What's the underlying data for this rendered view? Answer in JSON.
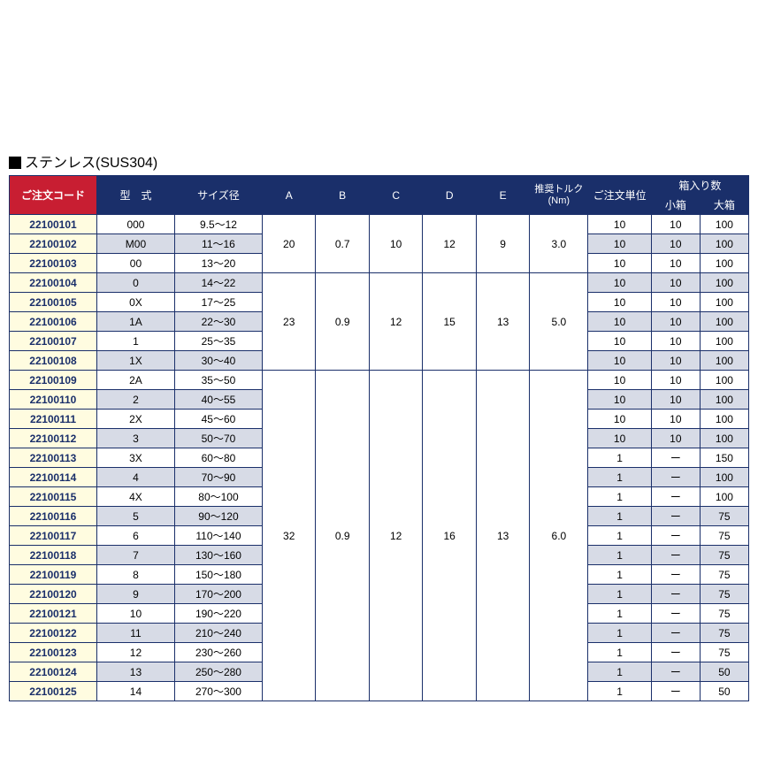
{
  "title": "ステンレス(SUS304)",
  "colors": {
    "header_bg": "#1a2f6a",
    "header_fg": "#ffffff",
    "order_header_bg": "#c81e32",
    "code_cell_bg": "#fffce0",
    "code_cell_fg": "#1a2f6a",
    "alt_row_bg": "#d7dbe6",
    "border": "#1a2f6a"
  },
  "columns": {
    "order_code": "ご注文コード",
    "type": "型　式",
    "size": "サイズ径",
    "a": "A",
    "b": "B",
    "c": "C",
    "d": "D",
    "e": "E",
    "torque": "推奨トルク\n(Nm)",
    "order_unit": "ご注文単位",
    "box_count": "箱入り数",
    "small_box": "小箱",
    "large_box": "大箱"
  },
  "spec_groups": [
    {
      "A": "20",
      "B": "0.7",
      "C": "10",
      "D": "12",
      "E": "9",
      "torque": "3.0",
      "span": 3
    },
    {
      "A": "23",
      "B": "0.9",
      "C": "12",
      "D": "15",
      "E": "13",
      "torque": "5.0",
      "span": 5
    },
    {
      "A": "32",
      "B": "0.9",
      "C": "12",
      "D": "16",
      "E": "13",
      "torque": "6.0",
      "span": 17
    }
  ],
  "rows": [
    {
      "code": "22100101",
      "type": "000",
      "size": "9.5～12",
      "unit": "10",
      "sm": "10",
      "lg": "100",
      "alt": false,
      "group": 0
    },
    {
      "code": "22100102",
      "type": "M00",
      "size": "11～16",
      "unit": "10",
      "sm": "10",
      "lg": "100",
      "alt": true,
      "group": 0
    },
    {
      "code": "22100103",
      "type": "00",
      "size": "13～20",
      "unit": "10",
      "sm": "10",
      "lg": "100",
      "alt": false,
      "group": 0
    },
    {
      "code": "22100104",
      "type": "0",
      "size": "14～22",
      "unit": "10",
      "sm": "10",
      "lg": "100",
      "alt": true,
      "group": 1
    },
    {
      "code": "22100105",
      "type": "0X",
      "size": "17～25",
      "unit": "10",
      "sm": "10",
      "lg": "100",
      "alt": false,
      "group": 1
    },
    {
      "code": "22100106",
      "type": "1A",
      "size": "22～30",
      "unit": "10",
      "sm": "10",
      "lg": "100",
      "alt": true,
      "group": 1
    },
    {
      "code": "22100107",
      "type": "1",
      "size": "25～35",
      "unit": "10",
      "sm": "10",
      "lg": "100",
      "alt": false,
      "group": 1
    },
    {
      "code": "22100108",
      "type": "1X",
      "size": "30～40",
      "unit": "10",
      "sm": "10",
      "lg": "100",
      "alt": true,
      "group": 1
    },
    {
      "code": "22100109",
      "type": "2A",
      "size": "35～50",
      "unit": "10",
      "sm": "10",
      "lg": "100",
      "alt": false,
      "group": 2
    },
    {
      "code": "22100110",
      "type": "2",
      "size": "40～55",
      "unit": "10",
      "sm": "10",
      "lg": "100",
      "alt": true,
      "group": 2
    },
    {
      "code": "22100111",
      "type": "2X",
      "size": "45～60",
      "unit": "10",
      "sm": "10",
      "lg": "100",
      "alt": false,
      "group": 2
    },
    {
      "code": "22100112",
      "type": "3",
      "size": "50～70",
      "unit": "10",
      "sm": "10",
      "lg": "100",
      "alt": true,
      "group": 2
    },
    {
      "code": "22100113",
      "type": "3X",
      "size": "60～80",
      "unit": "1",
      "sm": "ー",
      "lg": "150",
      "alt": false,
      "group": 2
    },
    {
      "code": "22100114",
      "type": "4",
      "size": "70～90",
      "unit": "1",
      "sm": "ー",
      "lg": "100",
      "alt": true,
      "group": 2
    },
    {
      "code": "22100115",
      "type": "4X",
      "size": "80～100",
      "unit": "1",
      "sm": "ー",
      "lg": "100",
      "alt": false,
      "group": 2
    },
    {
      "code": "22100116",
      "type": "5",
      "size": "90～120",
      "unit": "1",
      "sm": "ー",
      "lg": "75",
      "alt": true,
      "group": 2
    },
    {
      "code": "22100117",
      "type": "6",
      "size": "110～140",
      "unit": "1",
      "sm": "ー",
      "lg": "75",
      "alt": false,
      "group": 2
    },
    {
      "code": "22100118",
      "type": "7",
      "size": "130～160",
      "unit": "1",
      "sm": "ー",
      "lg": "75",
      "alt": true,
      "group": 2
    },
    {
      "code": "22100119",
      "type": "8",
      "size": "150～180",
      "unit": "1",
      "sm": "ー",
      "lg": "75",
      "alt": false,
      "group": 2
    },
    {
      "code": "22100120",
      "type": "9",
      "size": "170～200",
      "unit": "1",
      "sm": "ー",
      "lg": "75",
      "alt": true,
      "group": 2
    },
    {
      "code": "22100121",
      "type": "10",
      "size": "190～220",
      "unit": "1",
      "sm": "ー",
      "lg": "75",
      "alt": false,
      "group": 2
    },
    {
      "code": "22100122",
      "type": "11",
      "size": "210～240",
      "unit": "1",
      "sm": "ー",
      "lg": "75",
      "alt": true,
      "group": 2
    },
    {
      "code": "22100123",
      "type": "12",
      "size": "230～260",
      "unit": "1",
      "sm": "ー",
      "lg": "75",
      "alt": false,
      "group": 2
    },
    {
      "code": "22100124",
      "type": "13",
      "size": "250～280",
      "unit": "1",
      "sm": "ー",
      "lg": "50",
      "alt": true,
      "group": 2
    },
    {
      "code": "22100125",
      "type": "14",
      "size": "270～300",
      "unit": "1",
      "sm": "ー",
      "lg": "50",
      "alt": false,
      "group": 2
    }
  ]
}
